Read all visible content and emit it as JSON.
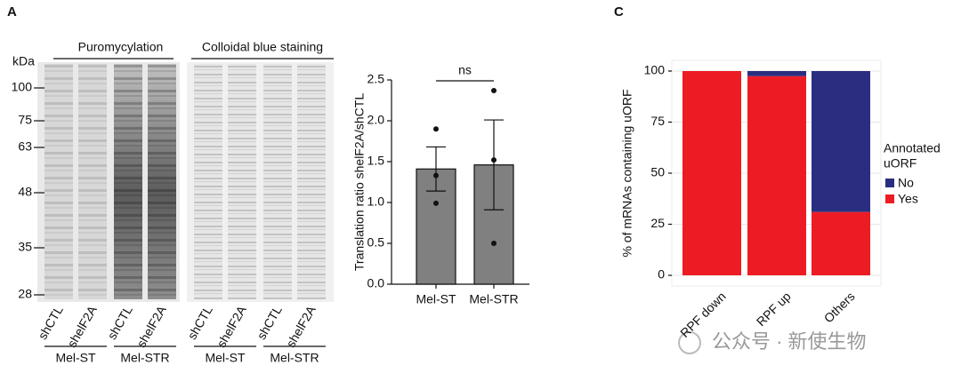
{
  "panel_labels": [
    "A",
    "C"
  ],
  "blot": {
    "unit": "kDa",
    "markers": [
      100,
      75,
      63,
      48,
      35,
      28
    ],
    "panels": [
      {
        "title": "Puromycylation",
        "lanes": [
          "shCTL",
          "shelF2A",
          "shCTL",
          "shelF2A"
        ],
        "groups": [
          "Mel-ST",
          "Mel-STR"
        ]
      },
      {
        "title": "Colloidal blue staining",
        "lanes": [
          "shCTL",
          "shelF2A",
          "shCTL",
          "shelF2A"
        ],
        "groups": [
          "Mel-ST",
          "Mel-STR"
        ]
      }
    ]
  },
  "chart_data": [
    {
      "type": "bar",
      "ylabel": "Translation ratio shelF2A/shCTL",
      "categories": [
        "Mel-ST",
        "Mel-STR"
      ],
      "values": [
        1.41,
        1.46
      ],
      "errors": [
        0.27,
        0.55
      ],
      "points": [
        [
          1.9,
          1.33,
          0.99
        ],
        [
          2.37,
          1.52,
          0.5
        ]
      ],
      "color": "#808080",
      "annotation": "ns",
      "ylim": [
        0,
        2.5
      ],
      "yticks": [
        {
          "value": 0,
          "label": "0.0"
        },
        {
          "value": 0.5,
          "label": "0.5"
        },
        {
          "value": 1,
          "label": "1.0"
        },
        {
          "value": 1.5,
          "label": "1.5"
        },
        {
          "value": 2,
          "label": "2.0"
        },
        {
          "value": 2.5,
          "label": "2.5"
        }
      ]
    },
    {
      "type": "stacked_bar",
      "ylabel": "% of mRNAs containing uORF",
      "categories": [
        "RPF down",
        "RPF up",
        "Others"
      ],
      "series": [
        {
          "name": "No",
          "color": "#2b2e80",
          "values": [
            0,
            2.5,
            69
          ]
        },
        {
          "name": "Yes",
          "color": "#ed1c24",
          "values": [
            100,
            97.5,
            31
          ]
        }
      ],
      "legend_title": [
        "Annotated",
        "uORF"
      ],
      "ylim": [
        0,
        100
      ],
      "yticks": [
        0,
        25,
        50,
        75,
        100
      ],
      "grid": true
    }
  ],
  "watermark": "公众号 · 新使生物"
}
